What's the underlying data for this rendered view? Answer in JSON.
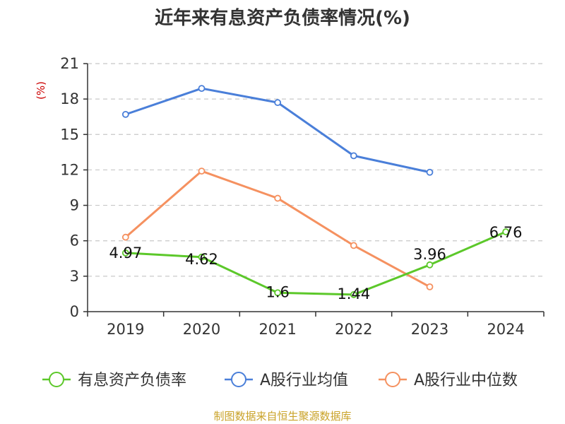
{
  "chart_data": {
    "type": "line",
    "title": "近年来有息资产负债率情况(%)",
    "ylabel": "(%)",
    "categories": [
      "2019",
      "2020",
      "2021",
      "2022",
      "2023",
      "2024"
    ],
    "yticks": [
      "0",
      "3",
      "6",
      "9",
      "12",
      "15",
      "18",
      "21"
    ],
    "ylim": [
      0,
      21
    ],
    "grid": true,
    "legend_position": "bottom",
    "series": [
      {
        "name": "有息资产负债率",
        "color": "#5cc82a",
        "values": [
          4.97,
          4.62,
          1.6,
          1.44,
          3.96,
          6.76
        ],
        "labels": [
          "4.97",
          "4.62",
          "1.6",
          "1.44",
          "3.96",
          "6.76"
        ]
      },
      {
        "name": "A股行业均值",
        "color": "#4a7fd9",
        "values": [
          16.7,
          18.9,
          17.7,
          13.2,
          11.8,
          null
        ]
      },
      {
        "name": "A股行业中位数",
        "color": "#f59160",
        "values": [
          6.3,
          11.9,
          9.6,
          5.6,
          2.1,
          null
        ]
      }
    ],
    "source": "制图数据来自恒生聚源数据库"
  }
}
